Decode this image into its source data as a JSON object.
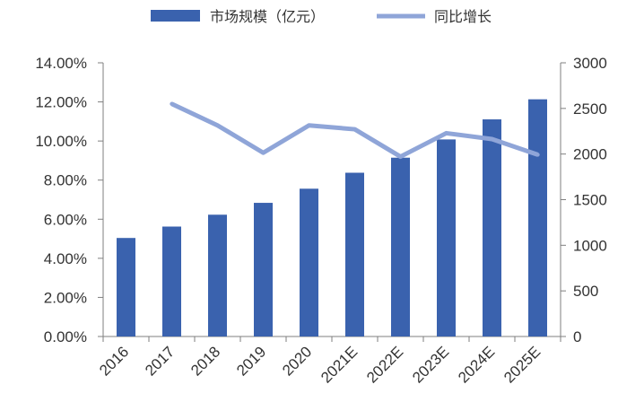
{
  "chart_data": {
    "type": "bar",
    "categories": [
      "2016",
      "2017",
      "2018",
      "2019",
      "2020",
      "2021E",
      "2022E",
      "2023E",
      "2024E",
      "2025E"
    ],
    "series": [
      {
        "name": "市场规模（亿元）",
        "kind": "bar",
        "axis": "right",
        "color": "#3a62ae",
        "values": [
          1080,
          1205,
          1335,
          1465,
          1620,
          1795,
          1960,
          2160,
          2380,
          2600
        ]
      },
      {
        "name": "同比增长",
        "kind": "line",
        "axis": "left",
        "color": "#8fa5d8",
        "values": [
          null,
          11.9,
          10.8,
          9.4,
          10.8,
          10.6,
          9.2,
          10.4,
          10.1,
          9.3
        ]
      }
    ],
    "y_left": {
      "ylim": [
        0,
        14
      ],
      "ticks": [
        "0.00%",
        "2.00%",
        "4.00%",
        "6.00%",
        "8.00%",
        "10.00%",
        "12.00%",
        "14.00%"
      ]
    },
    "y_right": {
      "ylim": [
        0,
        3000
      ],
      "ticks": [
        "0",
        "500",
        "1000",
        "1500",
        "2000",
        "2500",
        "3000"
      ]
    },
    "legend_position": "top-center",
    "grid": false
  }
}
